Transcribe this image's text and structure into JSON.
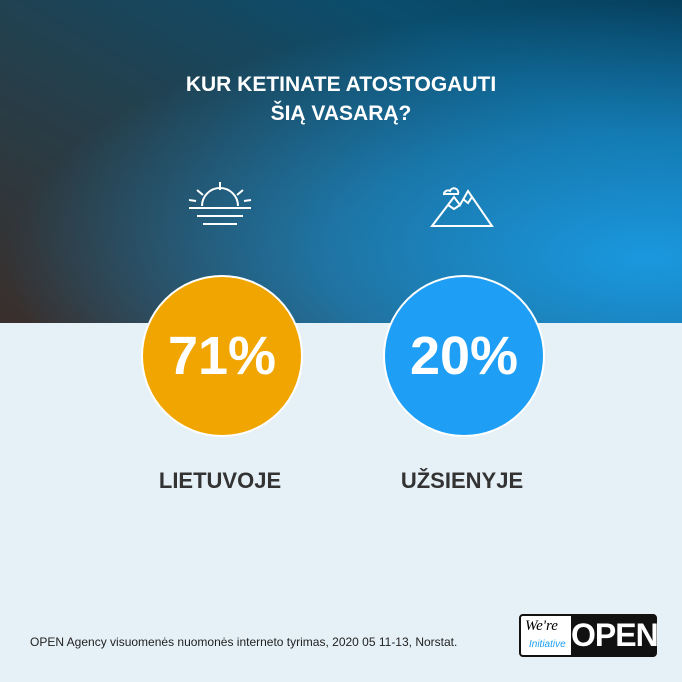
{
  "title": [
    "KUR KETINATE ATOSTOGAUTI",
    "ŠIĄ VASARĄ?"
  ],
  "items": [
    {
      "value": "71%",
      "label": "LIETUVOJE"
    },
    {
      "value": "20%",
      "label": "UŽSIENYJE"
    }
  ],
  "footnote": "OPEN Agency visuomenės nuomonės interneto tyrimas, 2020 05 11-13, Norstat.",
  "logo": {
    "top": "We're",
    "bottom": "Initiative",
    "main": "OPEN"
  }
}
